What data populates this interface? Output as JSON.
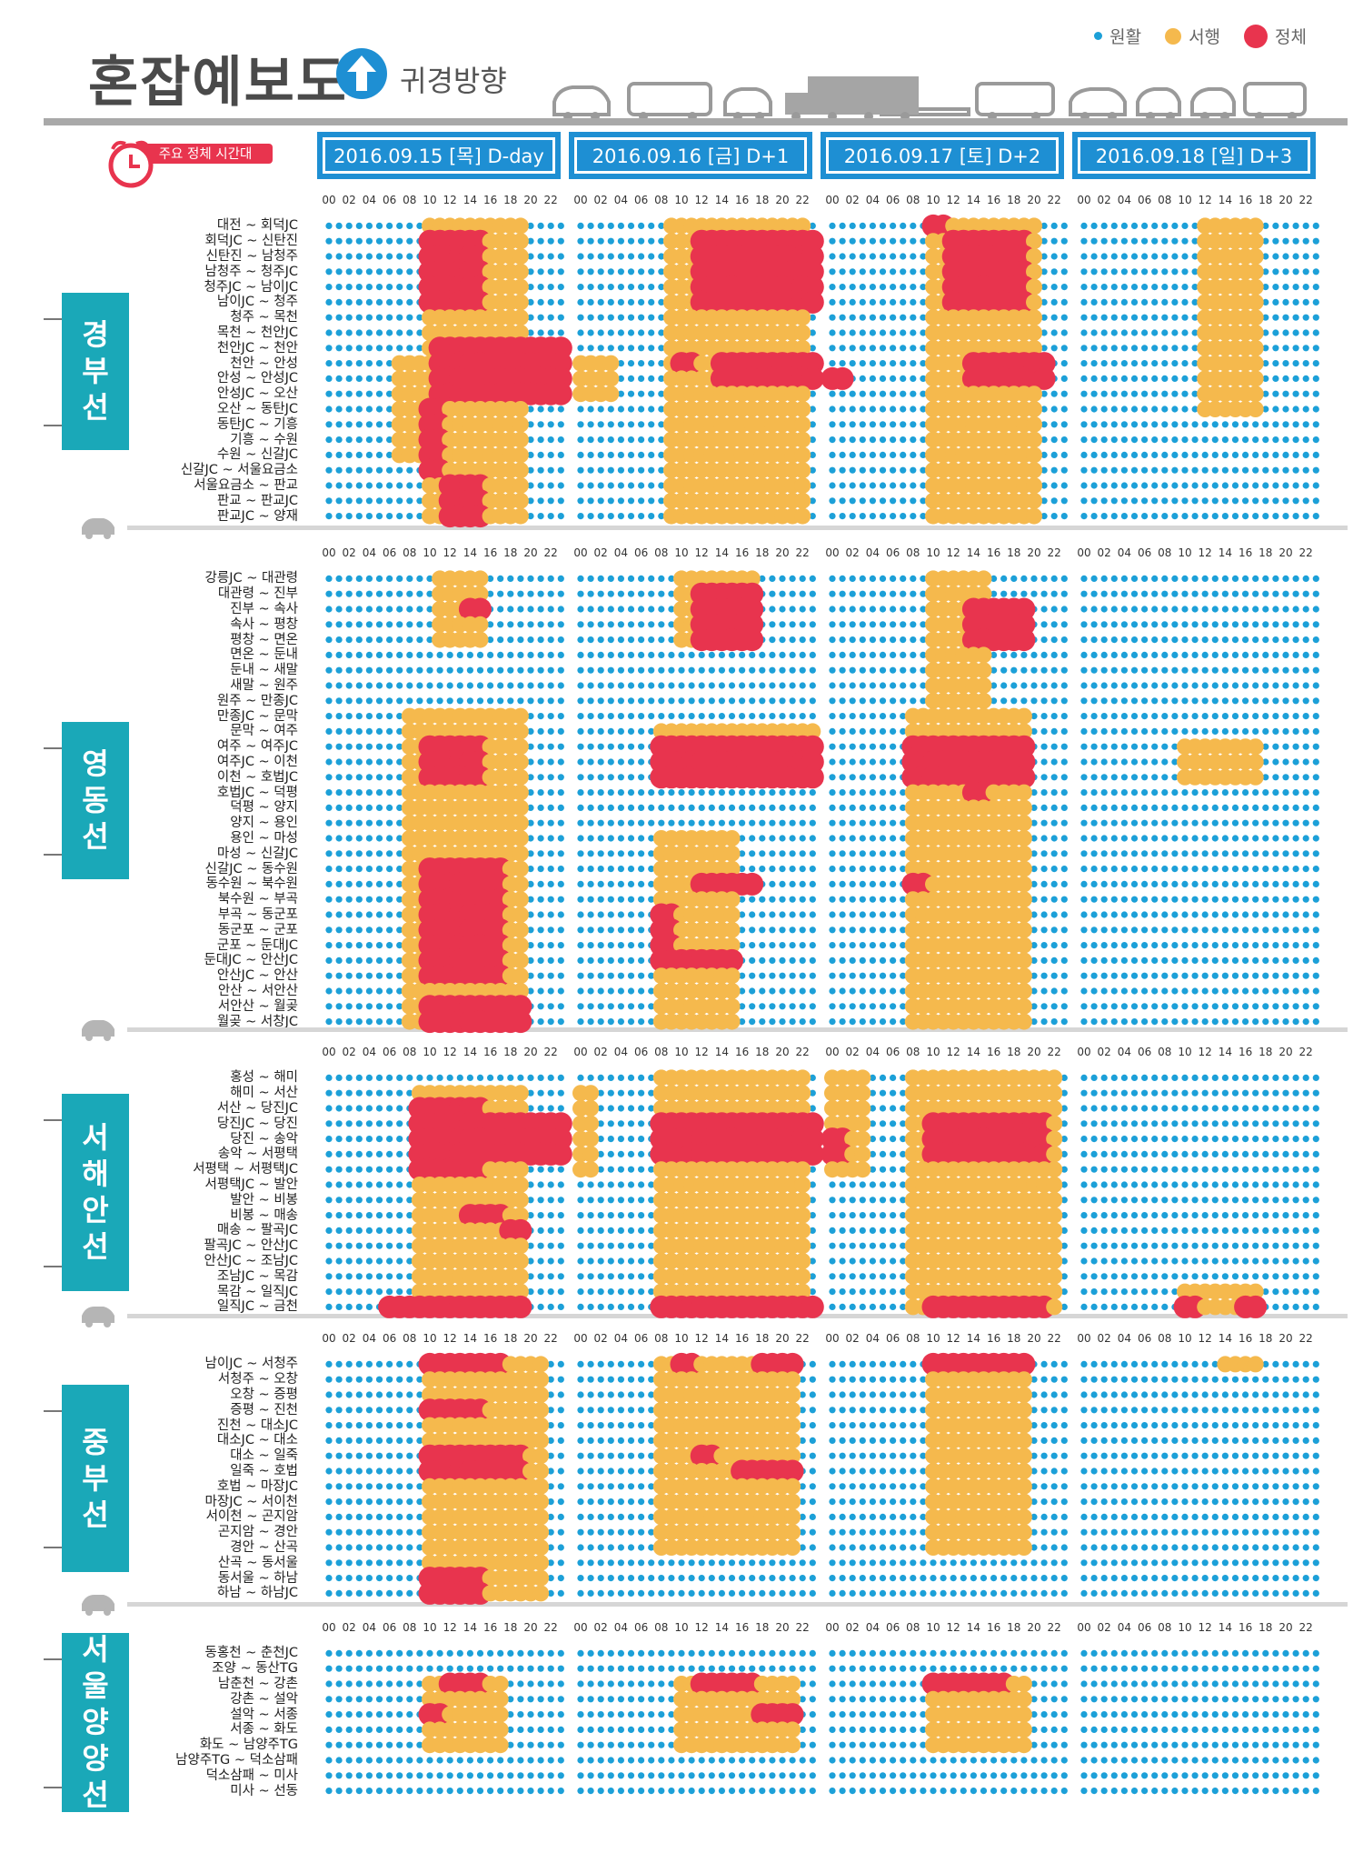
{
  "title": "혼잡예보도",
  "direction": "귀경방향",
  "legend": [
    {
      "label": "원활",
      "color": "#1ca0d8"
    },
    {
      "label": "서행",
      "color": "#f5b94d"
    },
    {
      "label": "정체",
      "color": "#e8344e"
    }
  ],
  "badge": "주요 정체 시간대",
  "days": [
    "2016.09.15 [목] D-day",
    "2016.09.16 [금] D+1",
    "2016.09.17 [토] D+2",
    "2016.09.18 [일] D+3"
  ],
  "hour_labels": [
    "00",
    "02",
    "04",
    "06",
    "08",
    "10",
    "12",
    "14",
    "16",
    "18",
    "20",
    "22"
  ],
  "chart_data": {
    "type": "heatmap",
    "x_unit": "hour",
    "levels": [
      "원활",
      "서행",
      "정체"
    ],
    "sections": [
      {
        "name": "경부선",
        "segments": [
          "대전 ~ 회덕JC",
          "회덕JC ~ 신탄진",
          "신탄진 ~ 남청주",
          "남청주 ~ 청주JC",
          "청주JC ~ 남이JC",
          "남이JC ~ 청주",
          "청주 ~ 목천",
          "목천 ~ 천안JC",
          "천안JC ~ 천안",
          "천안 ~ 안성",
          "안성 ~ 안성JC",
          "안성JC ~ 오산",
          "오산 ~ 동탄JC",
          "동탄JC ~ 기흥",
          "기흥 ~ 수원",
          "수원 ~ 신갈JC",
          "신갈JC ~ 서울요금소",
          "서울요금소 ~ 판교",
          "판교 ~ 판교JC",
          "판교JC ~ 양재"
        ]
      },
      {
        "name": "영동선",
        "segments": [
          "강릉JC ~ 대관령",
          "대관령 ~ 진부",
          "진부 ~ 속사",
          "속사 ~ 평창",
          "평창 ~ 면온",
          "면온 ~ 둔내",
          "둔내 ~ 새말",
          "새말 ~ 원주",
          "원주 ~ 만종JC",
          "만종JC ~ 문막",
          "문막 ~ 여주",
          "여주 ~ 여주JC",
          "여주JC ~ 이천",
          "이천 ~ 호법JC",
          "호법JC ~ 덕평",
          "덕평 ~ 양지",
          "양지 ~ 용인",
          "용인 ~ 마성",
          "마성 ~ 신갈JC",
          "신갈JC ~ 동수원",
          "동수원 ~ 북수원",
          "북수원 ~ 부곡",
          "부곡 ~ 동군포",
          "동군포 ~ 군포",
          "군포 ~ 둔대JC",
          "둔대JC ~ 안산JC",
          "안산JC ~ 안산",
          "안산 ~ 서안산",
          "서안산 ~ 월곶",
          "월곶 ~ 서창JC"
        ]
      },
      {
        "name": "서해안선",
        "segments": [
          "홍성 ~ 해미",
          "해미 ~ 서산",
          "서산 ~ 당진JC",
          "당진JC ~ 당진",
          "당진 ~ 송악",
          "송악 ~ 서평택",
          "서평택 ~ 서평택JC",
          "서평택JC ~ 발안",
          "발안 ~ 비봉",
          "비봉 ~ 매송",
          "매송 ~ 팔곡JC",
          "팔곡JC ~ 안산JC",
          "안산JC ~ 조남JC",
          "조남JC ~ 목감",
          "목감 ~ 일직JC",
          "일직JC ~ 금천"
        ]
      },
      {
        "name": "중부선",
        "segments": [
          "남이JC ~ 서청주",
          "서청주 ~ 오창",
          "오창 ~ 증평",
          "증평 ~ 진천",
          "진천 ~ 대소JC",
          "대소JC ~ 대소",
          "대소 ~ 일죽",
          "일죽 ~ 호법",
          "호법 ~ 마장JC",
          "마장JC ~ 서이천",
          "서이천 ~ 곤지암",
          "곤지암 ~ 경안",
          "경안 ~ 산곡",
          "산곡 ~ 동서울",
          "동서울 ~ 하남",
          "하남 ~ 하남JC"
        ]
      },
      {
        "name": "서울양양선",
        "segments": [
          "동홍천 ~ 춘천JC",
          "조양 ~ 동산TG",
          "남춘천 ~ 강촌",
          "강촌 ~ 설악",
          "설악 ~ 서종",
          "서종 ~ 화도",
          "화도 ~ 남양주TG",
          "남양주TG ~ 덕소삼패",
          "덕소삼패 ~ 미사",
          "미사 ~ 선동"
        ]
      }
    ],
    "blocks": [
      {
        "s": 0,
        "d": 0,
        "r": [
          0,
          19
        ],
        "h": [
          10,
          19
        ],
        "v": 1
      },
      {
        "s": 0,
        "d": 0,
        "r": [
          10,
          11
        ],
        "h": [
          18,
          23
        ],
        "v": 1
      },
      {
        "s": 0,
        "d": 0,
        "r": [
          9,
          15
        ],
        "h": [
          7,
          9
        ],
        "v": 1
      },
      {
        "s": 0,
        "d": 0,
        "r": [
          1,
          5
        ],
        "h": [
          10,
          15
        ],
        "v": 2
      },
      {
        "s": 0,
        "d": 0,
        "r": [
          8,
          11
        ],
        "h": [
          11,
          23
        ],
        "v": 2
      },
      {
        "s": 0,
        "d": 0,
        "r": [
          12,
          16
        ],
        "h": [
          10,
          11
        ],
        "v": 2
      },
      {
        "s": 0,
        "d": 0,
        "r": [
          17,
          19
        ],
        "h": [
          12,
          15
        ],
        "v": 2
      },
      {
        "s": 0,
        "d": 1,
        "r": [
          0,
          19
        ],
        "h": [
          9,
          22
        ],
        "v": 1
      },
      {
        "s": 0,
        "d": 1,
        "r": [
          9,
          11
        ],
        "h": [
          0,
          3
        ],
        "v": 1
      },
      {
        "s": 0,
        "d": 1,
        "r": [
          1,
          5
        ],
        "h": [
          12,
          23
        ],
        "v": 2
      },
      {
        "s": 0,
        "d": 1,
        "r": [
          9,
          10
        ],
        "h": [
          14,
          23
        ],
        "v": 2
      },
      {
        "s": 0,
        "d": 1,
        "r": [
          9,
          9
        ],
        "h": [
          10,
          11
        ],
        "v": 2
      },
      {
        "s": 0,
        "d": 2,
        "r": [
          0,
          19
        ],
        "h": [
          10,
          20
        ],
        "v": 1
      },
      {
        "s": 0,
        "d": 2,
        "r": [
          1,
          5
        ],
        "h": [
          12,
          19
        ],
        "v": 2
      },
      {
        "s": 0,
        "d": 2,
        "r": [
          0,
          0
        ],
        "h": [
          10,
          11
        ],
        "v": 2
      },
      {
        "s": 0,
        "d": 2,
        "r": [
          9,
          10
        ],
        "h": [
          14,
          21
        ],
        "v": 2
      },
      {
        "s": 0,
        "d": 2,
        "r": [
          10,
          10
        ],
        "h": [
          0,
          1
        ],
        "v": 2
      },
      {
        "s": 0,
        "d": 3,
        "r": [
          0,
          12
        ],
        "h": [
          12,
          17
        ],
        "v": 1
      },
      {
        "s": 1,
        "d": 0,
        "r": [
          0,
          4
        ],
        "h": [
          11,
          15
        ],
        "v": 1
      },
      {
        "s": 1,
        "d": 0,
        "r": [
          9,
          29
        ],
        "h": [
          8,
          19
        ],
        "v": 1
      },
      {
        "s": 1,
        "d": 0,
        "r": [
          11,
          13
        ],
        "h": [
          10,
          15
        ],
        "v": 2
      },
      {
        "s": 1,
        "d": 0,
        "r": [
          19,
          26
        ],
        "h": [
          10,
          17
        ],
        "v": 2
      },
      {
        "s": 1,
        "d": 0,
        "r": [
          28,
          29
        ],
        "h": [
          10,
          19
        ],
        "v": 2
      },
      {
        "s": 1,
        "d": 0,
        "r": [
          2,
          2
        ],
        "h": [
          14,
          15
        ],
        "v": 2
      },
      {
        "s": 1,
        "d": 1,
        "r": [
          0,
          4
        ],
        "h": [
          10,
          17
        ],
        "v": 1
      },
      {
        "s": 1,
        "d": 1,
        "r": [
          10,
          13
        ],
        "h": [
          8,
          23
        ],
        "v": 1
      },
      {
        "s": 1,
        "d": 1,
        "r": [
          17,
          29
        ],
        "h": [
          8,
          15
        ],
        "v": 1
      },
      {
        "s": 1,
        "d": 1,
        "r": [
          1,
          4
        ],
        "h": [
          12,
          17
        ],
        "v": 2
      },
      {
        "s": 1,
        "d": 1,
        "r": [
          11,
          13
        ],
        "h": [
          8,
          23
        ],
        "v": 2
      },
      {
        "s": 1,
        "d": 1,
        "r": [
          20,
          20
        ],
        "h": [
          12,
          17
        ],
        "v": 2
      },
      {
        "s": 1,
        "d": 1,
        "r": [
          22,
          25
        ],
        "h": [
          8,
          9
        ],
        "v": 2
      },
      {
        "s": 1,
        "d": 1,
        "r": [
          25,
          25
        ],
        "h": [
          10,
          15
        ],
        "v": 2
      },
      {
        "s": 1,
        "d": 2,
        "r": [
          0,
          8
        ],
        "h": [
          10,
          15
        ],
        "v": 1
      },
      {
        "s": 1,
        "d": 2,
        "r": [
          9,
          29
        ],
        "h": [
          8,
          19
        ],
        "v": 1
      },
      {
        "s": 1,
        "d": 2,
        "r": [
          2,
          4
        ],
        "h": [
          14,
          19
        ],
        "v": 2
      },
      {
        "s": 1,
        "d": 2,
        "r": [
          11,
          13
        ],
        "h": [
          8,
          19
        ],
        "v": 2
      },
      {
        "s": 1,
        "d": 2,
        "r": [
          14,
          14
        ],
        "h": [
          14,
          15
        ],
        "v": 2
      },
      {
        "s": 1,
        "d": 2,
        "r": [
          20,
          20
        ],
        "h": [
          8,
          9
        ],
        "v": 2
      },
      {
        "s": 1,
        "d": 3,
        "r": [
          11,
          13
        ],
        "h": [
          10,
          17
        ],
        "v": 1
      },
      {
        "s": 2,
        "d": 0,
        "r": [
          1,
          14
        ],
        "h": [
          9,
          19
        ],
        "v": 1
      },
      {
        "s": 2,
        "d": 0,
        "r": [
          2,
          6
        ],
        "h": [
          9,
          15
        ],
        "v": 2
      },
      {
        "s": 2,
        "d": 0,
        "r": [
          3,
          5
        ],
        "h": [
          9,
          23
        ],
        "v": 2
      },
      {
        "s": 2,
        "d": 0,
        "r": [
          9,
          9
        ],
        "h": [
          14,
          17
        ],
        "v": 2
      },
      {
        "s": 2,
        "d": 0,
        "r": [
          10,
          10
        ],
        "h": [
          18,
          19
        ],
        "v": 2
      },
      {
        "s": 2,
        "d": 0,
        "r": [
          15,
          15
        ],
        "h": [
          6,
          19
        ],
        "v": 2
      },
      {
        "s": 2,
        "d": 1,
        "r": [
          0,
          15
        ],
        "h": [
          8,
          22
        ],
        "v": 1
      },
      {
        "s": 2,
        "d": 1,
        "r": [
          1,
          6
        ],
        "h": [
          0,
          1
        ],
        "v": 1
      },
      {
        "s": 2,
        "d": 1,
        "r": [
          3,
          5
        ],
        "h": [
          8,
          23
        ],
        "v": 2
      },
      {
        "s": 2,
        "d": 1,
        "r": [
          15,
          15
        ],
        "h": [
          8,
          23
        ],
        "v": 2
      },
      {
        "s": 2,
        "d": 2,
        "r": [
          0,
          15
        ],
        "h": [
          8,
          22
        ],
        "v": 1
      },
      {
        "s": 2,
        "d": 2,
        "r": [
          0,
          6
        ],
        "h": [
          0,
          3
        ],
        "v": 1
      },
      {
        "s": 2,
        "d": 2,
        "r": [
          3,
          5
        ],
        "h": [
          10,
          21
        ],
        "v": 2
      },
      {
        "s": 2,
        "d": 2,
        "r": [
          4,
          5
        ],
        "h": [
          0,
          1
        ],
        "v": 2
      },
      {
        "s": 2,
        "d": 2,
        "r": [
          15,
          15
        ],
        "h": [
          10,
          21
        ],
        "v": 2
      },
      {
        "s": 2,
        "d": 3,
        "r": [
          14,
          15
        ],
        "h": [
          10,
          17
        ],
        "v": 1
      },
      {
        "s": 2,
        "d": 3,
        "r": [
          15,
          15
        ],
        "h": [
          10,
          11
        ],
        "v": 2
      },
      {
        "s": 2,
        "d": 3,
        "r": [
          15,
          15
        ],
        "h": [
          16,
          17
        ],
        "v": 2
      },
      {
        "s": 3,
        "d": 0,
        "r": [
          0,
          15
        ],
        "h": [
          10,
          21
        ],
        "v": 1
      },
      {
        "s": 3,
        "d": 0,
        "r": [
          0,
          0
        ],
        "h": [
          10,
          17
        ],
        "v": 2
      },
      {
        "s": 3,
        "d": 0,
        "r": [
          3,
          3
        ],
        "h": [
          10,
          15
        ],
        "v": 2
      },
      {
        "s": 3,
        "d": 0,
        "r": [
          6,
          7
        ],
        "h": [
          10,
          19
        ],
        "v": 2
      },
      {
        "s": 3,
        "d": 0,
        "r": [
          14,
          15
        ],
        "h": [
          10,
          15
        ],
        "v": 2
      },
      {
        "s": 3,
        "d": 1,
        "r": [
          0,
          12
        ],
        "h": [
          8,
          21
        ],
        "v": 1
      },
      {
        "s": 3,
        "d": 1,
        "r": [
          0,
          0
        ],
        "h": [
          10,
          11
        ],
        "v": 2
      },
      {
        "s": 3,
        "d": 1,
        "r": [
          0,
          0
        ],
        "h": [
          18,
          21
        ],
        "v": 2
      },
      {
        "s": 3,
        "d": 1,
        "r": [
          6,
          6
        ],
        "h": [
          12,
          13
        ],
        "v": 2
      },
      {
        "s": 3,
        "d": 1,
        "r": [
          7,
          7
        ],
        "h": [
          16,
          21
        ],
        "v": 2
      },
      {
        "s": 3,
        "d": 2,
        "r": [
          0,
          12
        ],
        "h": [
          10,
          19
        ],
        "v": 1
      },
      {
        "s": 3,
        "d": 2,
        "r": [
          0,
          0
        ],
        "h": [
          10,
          19
        ],
        "v": 2
      },
      {
        "s": 3,
        "d": 3,
        "r": [
          0,
          0
        ],
        "h": [
          14,
          17
        ],
        "v": 1
      },
      {
        "s": 4,
        "d": 0,
        "r": [
          2,
          6
        ],
        "h": [
          10,
          17
        ],
        "v": 1
      },
      {
        "s": 4,
        "d": 0,
        "r": [
          2,
          2
        ],
        "h": [
          12,
          15
        ],
        "v": 2
      },
      {
        "s": 4,
        "d": 0,
        "r": [
          4,
          4
        ],
        "h": [
          10,
          11
        ],
        "v": 2
      },
      {
        "s": 4,
        "d": 1,
        "r": [
          2,
          6
        ],
        "h": [
          10,
          21
        ],
        "v": 1
      },
      {
        "s": 4,
        "d": 1,
        "r": [
          2,
          2
        ],
        "h": [
          12,
          17
        ],
        "v": 2
      },
      {
        "s": 4,
        "d": 1,
        "r": [
          4,
          4
        ],
        "h": [
          18,
          21
        ],
        "v": 2
      },
      {
        "s": 4,
        "d": 2,
        "r": [
          2,
          6
        ],
        "h": [
          10,
          19
        ],
        "v": 1
      },
      {
        "s": 4,
        "d": 2,
        "r": [
          2,
          2
        ],
        "h": [
          10,
          17
        ],
        "v": 2
      }
    ]
  }
}
